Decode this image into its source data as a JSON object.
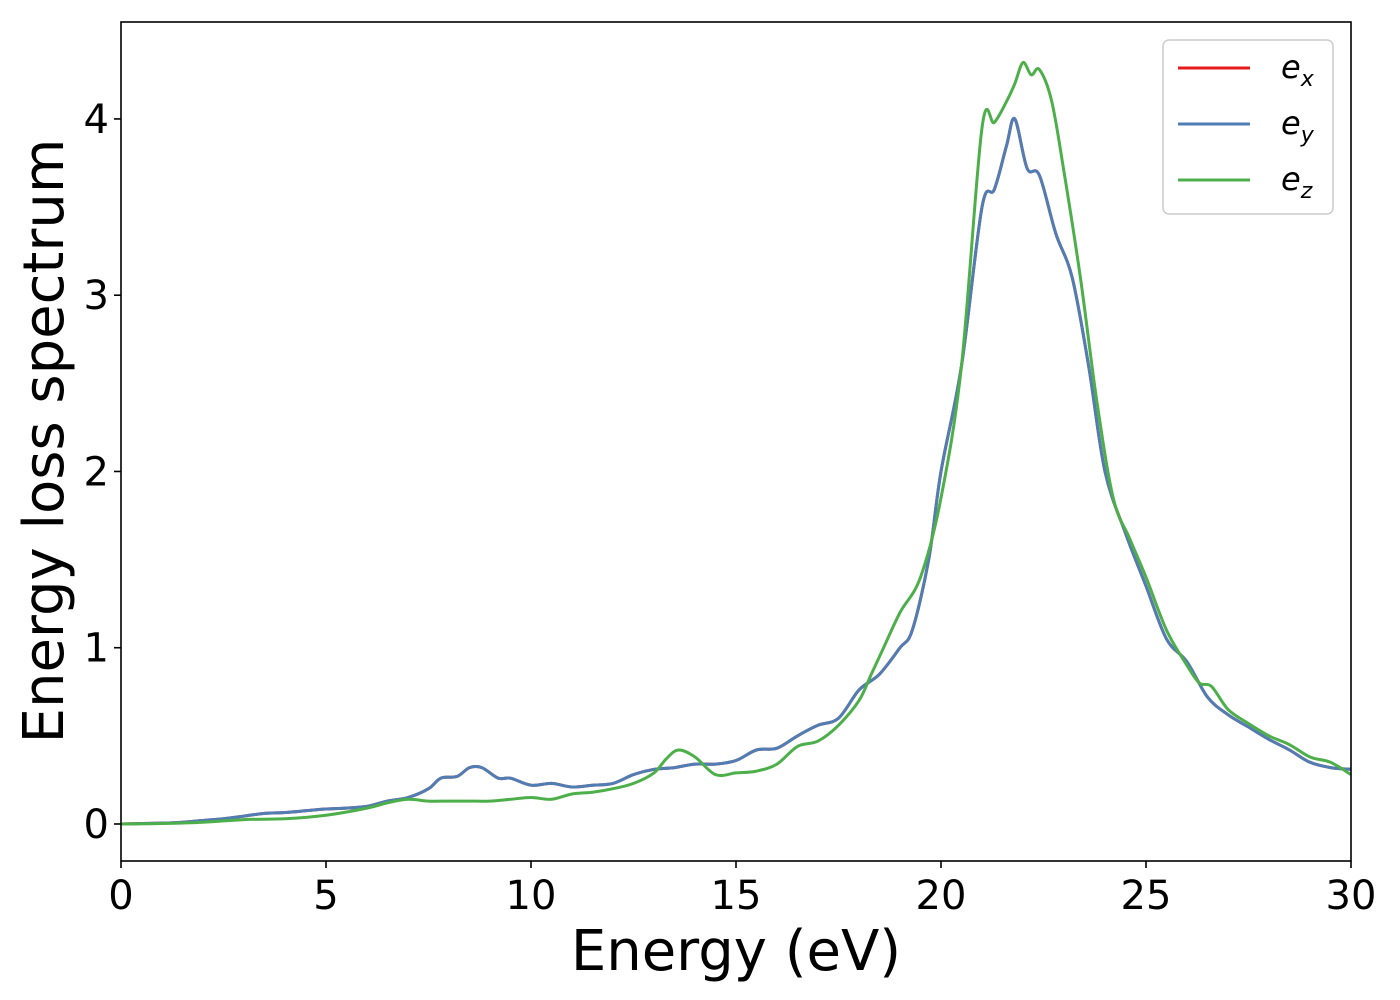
{
  "chart_data": {
    "type": "line",
    "xlabel": "Energy (eV)",
    "ylabel": "Energy loss spectrum",
    "xlim": [
      0,
      30
    ],
    "ylim": [
      -0.21,
      4.55
    ],
    "xticks": [
      0,
      5,
      10,
      15,
      20,
      25,
      30
    ],
    "yticks": [
      0,
      1,
      2,
      3,
      4
    ],
    "xtick_labels": [
      "0",
      "5",
      "10",
      "15",
      "20",
      "25",
      "30"
    ],
    "ytick_labels": [
      "0",
      "1",
      "2",
      "3",
      "4"
    ],
    "grid": false,
    "legend_position": "top-right",
    "series": [
      {
        "name": "e_x",
        "label_base": "e",
        "label_sub": "x",
        "color": "#e41a1c",
        "x": [
          0,
          1,
          1.5,
          2,
          2.5,
          3,
          3.5,
          4,
          4.5,
          5,
          5.5,
          6,
          6.5,
          7,
          7.5,
          7.8,
          8.2,
          8.5,
          8.8,
          9.2,
          9.5,
          10,
          10.5,
          11,
          11.5,
          12,
          12.5,
          13,
          13.5,
          14,
          14.5,
          15,
          15.5,
          16,
          16.5,
          17,
          17.5,
          18,
          18.5,
          19,
          19.3,
          19.7,
          20,
          20.5,
          21,
          21.3,
          21.6,
          21.8,
          22.1,
          22.4,
          22.8,
          23.2,
          23.6,
          24,
          24.5,
          25,
          25.5,
          26,
          26.5,
          27,
          27.5,
          28,
          28.5,
          29,
          29.5,
          30
        ],
        "y": [
          0,
          0.005,
          0.01,
          0.02,
          0.03,
          0.045,
          0.06,
          0.065,
          0.075,
          0.085,
          0.09,
          0.1,
          0.13,
          0.15,
          0.2,
          0.26,
          0.27,
          0.32,
          0.32,
          0.26,
          0.26,
          0.22,
          0.23,
          0.21,
          0.22,
          0.23,
          0.28,
          0.31,
          0.32,
          0.34,
          0.34,
          0.36,
          0.42,
          0.43,
          0.5,
          0.56,
          0.6,
          0.76,
          0.85,
          1.0,
          1.1,
          1.5,
          2.0,
          2.6,
          3.5,
          3.6,
          3.85,
          4.0,
          3.72,
          3.68,
          3.35,
          3.1,
          2.6,
          2.0,
          1.65,
          1.35,
          1.05,
          0.92,
          0.72,
          0.62,
          0.55,
          0.48,
          0.42,
          0.35,
          0.32,
          0.31
        ]
      },
      {
        "name": "e_y",
        "label_base": "e",
        "label_sub": "y",
        "color": "#4f7eb5",
        "x": [
          0,
          1,
          1.5,
          2,
          2.5,
          3,
          3.5,
          4,
          4.5,
          5,
          5.5,
          6,
          6.5,
          7,
          7.5,
          7.8,
          8.2,
          8.5,
          8.8,
          9.2,
          9.5,
          10,
          10.5,
          11,
          11.5,
          12,
          12.5,
          13,
          13.5,
          14,
          14.5,
          15,
          15.5,
          16,
          16.5,
          17,
          17.5,
          18,
          18.5,
          19,
          19.3,
          19.7,
          20,
          20.5,
          21,
          21.3,
          21.6,
          21.8,
          22.1,
          22.4,
          22.8,
          23.2,
          23.6,
          24,
          24.5,
          25,
          25.5,
          26,
          26.5,
          27,
          27.5,
          28,
          28.5,
          29,
          29.5,
          30
        ],
        "y": [
          0,
          0.005,
          0.01,
          0.02,
          0.03,
          0.045,
          0.06,
          0.065,
          0.075,
          0.085,
          0.09,
          0.1,
          0.13,
          0.15,
          0.2,
          0.26,
          0.27,
          0.32,
          0.32,
          0.26,
          0.26,
          0.22,
          0.23,
          0.21,
          0.22,
          0.23,
          0.28,
          0.31,
          0.32,
          0.34,
          0.34,
          0.36,
          0.42,
          0.43,
          0.5,
          0.56,
          0.6,
          0.76,
          0.85,
          1.0,
          1.1,
          1.5,
          2.0,
          2.6,
          3.5,
          3.6,
          3.85,
          4.0,
          3.72,
          3.68,
          3.35,
          3.1,
          2.6,
          2.0,
          1.65,
          1.35,
          1.05,
          0.92,
          0.72,
          0.62,
          0.55,
          0.48,
          0.42,
          0.35,
          0.32,
          0.31
        ]
      },
      {
        "name": "e_z",
        "label_base": "e",
        "label_sub": "z",
        "color": "#4daf4a",
        "x": [
          0,
          1,
          2,
          3,
          4,
          5,
          6,
          6.5,
          7,
          7.5,
          8,
          8.5,
          9,
          9.5,
          10,
          10.5,
          11,
          11.5,
          12,
          12.5,
          13,
          13.3,
          13.6,
          14,
          14.5,
          15,
          15.5,
          16,
          16.5,
          17,
          17.5,
          18,
          18.3,
          18.6,
          19,
          19.5,
          20,
          20.5,
          21,
          21.3,
          21.6,
          21.8,
          22,
          22.2,
          22.4,
          22.7,
          23,
          23.4,
          23.8,
          24.2,
          24.6,
          25,
          25.5,
          26,
          26.3,
          26.6,
          27,
          27.5,
          28,
          28.5,
          29,
          29.5,
          30
        ],
        "y": [
          0,
          0.003,
          0.01,
          0.025,
          0.03,
          0.05,
          0.09,
          0.12,
          0.14,
          0.13,
          0.13,
          0.13,
          0.13,
          0.14,
          0.15,
          0.14,
          0.17,
          0.18,
          0.2,
          0.23,
          0.29,
          0.37,
          0.42,
          0.38,
          0.28,
          0.29,
          0.3,
          0.34,
          0.44,
          0.47,
          0.56,
          0.7,
          0.85,
          1.0,
          1.2,
          1.4,
          1.85,
          2.6,
          3.95,
          3.98,
          4.1,
          4.2,
          4.32,
          4.25,
          4.28,
          4.1,
          3.7,
          3.1,
          2.4,
          1.85,
          1.62,
          1.4,
          1.1,
          0.9,
          0.8,
          0.78,
          0.65,
          0.57,
          0.5,
          0.45,
          0.38,
          0.35,
          0.28
        ]
      }
    ]
  }
}
